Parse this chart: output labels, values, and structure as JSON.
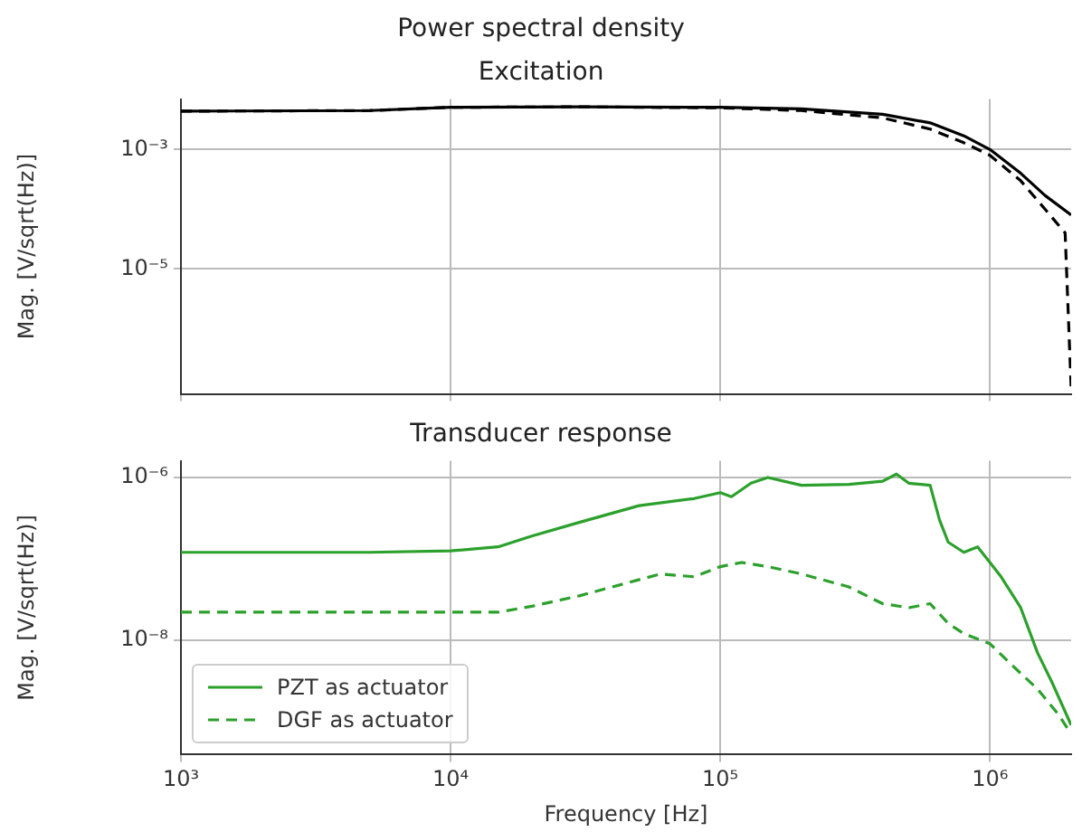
{
  "chart_data": [
    {
      "type": "line",
      "title": "Excitation",
      "annotations": [
        "Power spectral density"
      ],
      "ylabel": "Mag. [V/sqrt(Hz)]",
      "log": "xy",
      "grid": true,
      "tick_labels": "y",
      "legend": false,
      "marker": "none",
      "xlim": [
        1000,
        2000000
      ],
      "ylim": [
        8e-08,
        0.007
      ],
      "xticks": [
        {
          "value": 1000,
          "label": null
        },
        {
          "value": 10000,
          "label": null
        },
        {
          "value": 100000,
          "label": null
        },
        {
          "value": 1000000,
          "label": null
        }
      ],
      "yticks": [
        {
          "value": 0.001,
          "label": "10⁻³"
        },
        {
          "value": 1e-05,
          "label": "10⁻⁵"
        }
      ],
      "series": [
        {
          "color": "#000000",
          "line_style": "solid",
          "x": [
            1000,
            5000,
            10000,
            30000,
            100000,
            200000,
            400000,
            600000,
            800000,
            1000000,
            1300000,
            1600000,
            2000000
          ],
          "values": [
            0.0044,
            0.0045,
            0.0051,
            0.0052,
            0.0051,
            0.0048,
            0.0039,
            0.0028,
            0.0017,
            0.001,
            0.0004,
            0.00017,
            8e-05
          ]
        },
        {
          "color": "#000000",
          "line_style": "dashed",
          "x": [
            1000,
            5000,
            10000,
            30000,
            100000,
            200000,
            400000,
            600000,
            800000,
            1000000,
            1300000,
            1600000,
            1900000,
            2000000
          ],
          "values": [
            0.0044,
            0.0045,
            0.0051,
            0.0052,
            0.005,
            0.0045,
            0.0034,
            0.0022,
            0.0013,
            0.0008,
            0.0003,
            0.0001,
            4e-05,
            1e-07
          ]
        }
      ]
    },
    {
      "type": "line",
      "title": "Transducer response",
      "xlabel": "Frequency [Hz]",
      "ylabel": "Mag. [V/sqrt(Hz)]",
      "log": "xy",
      "grid": true,
      "legend": "bottom left",
      "marker": "none",
      "xlim": [
        1000,
        2000000
      ],
      "ylim": [
        3.9e-10,
        1.6e-06
      ],
      "xticks": [
        {
          "value": 1000,
          "label": "10³"
        },
        {
          "value": 10000,
          "label": "10⁴"
        },
        {
          "value": 100000,
          "label": "10⁵"
        },
        {
          "value": 1000000,
          "label": "10⁶"
        }
      ],
      "yticks": [
        {
          "value": 1e-06,
          "label": "10⁻⁶"
        },
        {
          "value": 1e-08,
          "label": "10⁻⁸"
        }
      ],
      "series": [
        {
          "name": "PZT as actuator",
          "color": "#2ca02c",
          "line_style": "solid",
          "x": [
            1000,
            5000,
            10000,
            15000,
            20000,
            30000,
            50000,
            80000,
            100000,
            110000,
            130000,
            150000,
            200000,
            300000,
            400000,
            450000,
            500000,
            600000,
            650000,
            700000,
            800000,
            900000,
            1000000,
            1100000,
            1300000,
            1500000,
            1700000,
            2000000
          ],
          "values": [
            1.2e-07,
            1.2e-07,
            1.25e-07,
            1.4e-07,
            1.9e-07,
            2.8e-07,
            4.5e-07,
            5.5e-07,
            6.5e-07,
            5.8e-07,
            8.5e-07,
            1e-06,
            8e-07,
            8.2e-07,
            9e-07,
            1.1e-06,
            8.5e-07,
            8e-07,
            3e-07,
            1.6e-07,
            1.2e-07,
            1.4e-07,
            9e-08,
            6e-08,
            2.5e-08,
            7e-09,
            3e-09,
            9e-10
          ]
        },
        {
          "name": "DGF as actuator",
          "color": "#2ca02c",
          "line_style": "dashed",
          "x": [
            1000,
            5000,
            10000,
            15000,
            20000,
            30000,
            60000,
            80000,
            100000,
            120000,
            150000,
            200000,
            300000,
            400000,
            500000,
            600000,
            700000,
            800000,
            1000000,
            1200000,
            1500000,
            1800000,
            2000000
          ],
          "values": [
            2.2e-08,
            2.2e-08,
            2.2e-08,
            2.2e-08,
            2.6e-08,
            3.5e-08,
            6.5e-08,
            6e-08,
            8e-08,
            9e-08,
            8e-08,
            6.5e-08,
            4.5e-08,
            2.8e-08,
            2.5e-08,
            2.8e-08,
            1.6e-08,
            1.2e-08,
            9e-09,
            5e-09,
            2.5e-09,
            1.2e-09,
            7e-10
          ]
        }
      ]
    }
  ]
}
